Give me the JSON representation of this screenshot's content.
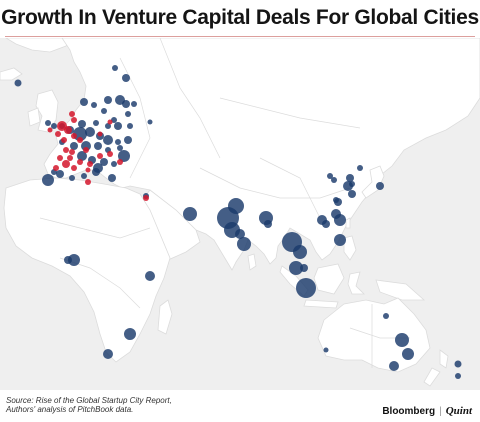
{
  "title": "Growth In Venture Capital Deals For Global Cities",
  "source_lines": [
    "Source: Rise of the Global Startup City Report,",
    "Authors' analysis of PitchBook data."
  ],
  "brand": {
    "name1": "Bloomberg",
    "separator": "|",
    "name2": "Quint"
  },
  "colors": {
    "land": "#ffffff",
    "water": "#efefef",
    "border": "#dcdcdc",
    "bubble_blue": "#1b3a6b",
    "bubble_red": "#d4162c",
    "rule": "#c0504d"
  },
  "icons": [
    "map-bubble-marker"
  ]
}
